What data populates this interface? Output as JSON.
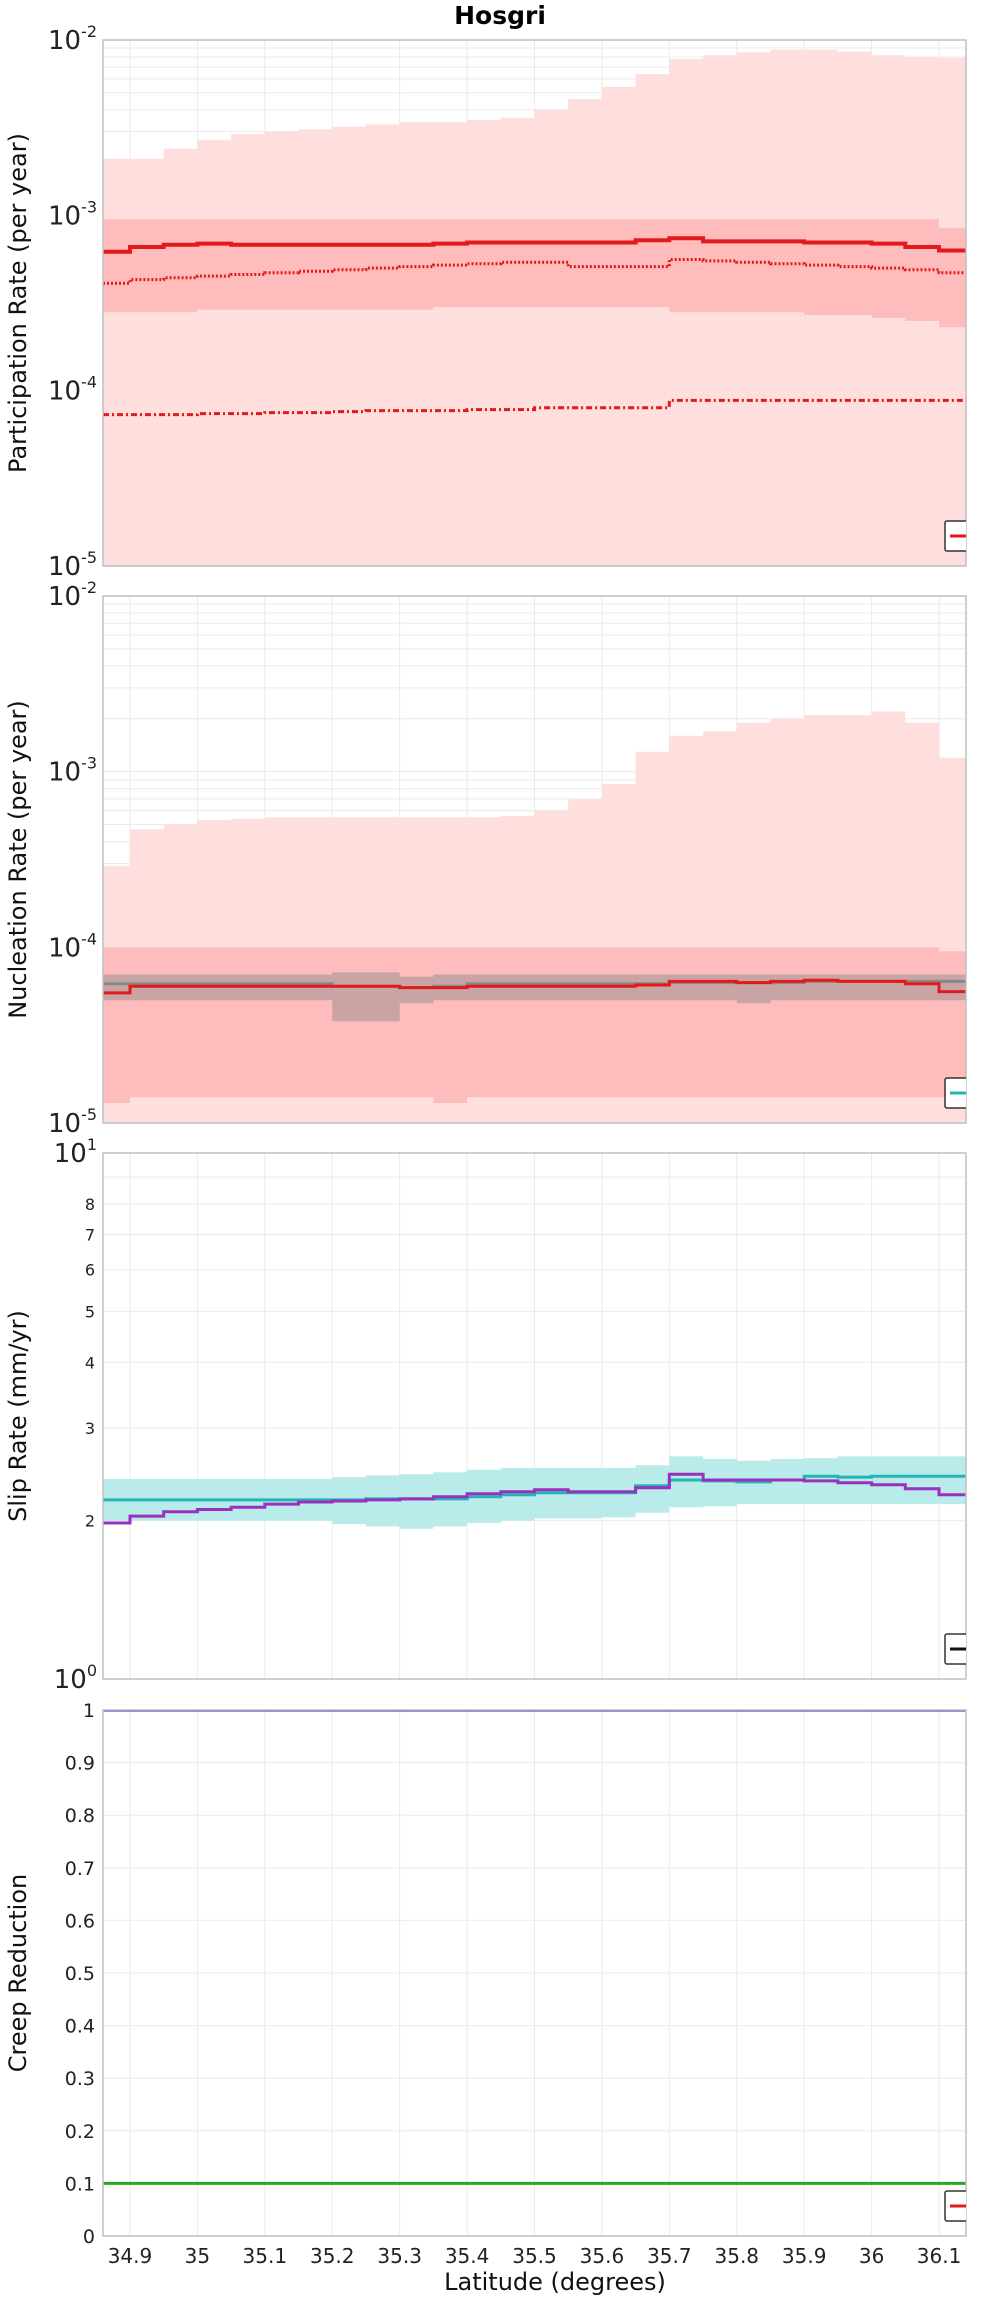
{
  "title": "Hosgri",
  "xlabel": "Latitude (degrees)",
  "x_ticks": [
    "34.9",
    "35",
    "35.1",
    "35.2",
    "35.3",
    "35.4",
    "35.5",
    "35.6",
    "35.7",
    "35.8",
    "35.9",
    "36",
    "36.1"
  ],
  "x_tick_values": [
    34.9,
    35.0,
    35.1,
    35.2,
    35.3,
    35.4,
    35.5,
    35.6,
    35.7,
    35.8,
    35.9,
    36.0,
    36.1
  ],
  "x_range": [
    34.86,
    36.14
  ],
  "x_edges": [
    34.86,
    34.9,
    34.95,
    35.0,
    35.05,
    35.1,
    35.15,
    35.2,
    35.25,
    35.3,
    35.35,
    35.4,
    35.45,
    35.5,
    35.55,
    35.6,
    35.65,
    35.7,
    35.75,
    35.8,
    35.85,
    35.9,
    35.95,
    36.0,
    36.05,
    36.1,
    36.14
  ],
  "colors": {
    "red": "#e31a1c",
    "cyan": "#22b5b5",
    "purple": "#9a2fc0",
    "green": "#22aa22",
    "blue": "#2d2db0",
    "gray": "#888888",
    "light_red": "#ffdede",
    "mid_red": "#ffbcbc",
    "light_cyan": "#b8ebea",
    "grid": "#ebebeb",
    "frame": "#bfbfbf"
  },
  "chart_data": [
    {
      "id": "participation",
      "type": "area",
      "ylabel": "Participation Rate (per year)",
      "yscale": "log",
      "ylim": [
        1e-05,
        0.01
      ],
      "y_ticks": [
        {
          "value": 1e-05,
          "base": "10",
          "exp": "-5"
        },
        {
          "value": 0.0001,
          "base": "10",
          "exp": "-4"
        },
        {
          "value": 0.001,
          "base": "10",
          "exp": "-3"
        },
        {
          "value": 0.01,
          "base": "10",
          "exp": "-2"
        }
      ],
      "bands": [
        {
          "color": "light_red",
          "lower": [
            1e-05,
            1e-05,
            1e-05,
            1e-05,
            1e-05,
            1e-05,
            1e-05,
            1e-05,
            1e-05,
            1e-05,
            1e-05,
            1e-05,
            1e-05,
            1e-05,
            1e-05,
            1e-05,
            1e-05,
            1e-05,
            1e-05,
            1e-05,
            1e-05,
            1e-05,
            1e-05,
            1e-05,
            1e-05,
            1e-05
          ],
          "upper": [
            0.0021,
            0.0021,
            0.0024,
            0.0027,
            0.0029,
            0.003,
            0.0031,
            0.0032,
            0.0033,
            0.0034,
            0.0034,
            0.0035,
            0.0036,
            0.004,
            0.0046,
            0.0054,
            0.0064,
            0.0078,
            0.0082,
            0.0085,
            0.0088,
            0.0088,
            0.0086,
            0.0082,
            0.008,
            0.0079
          ]
        },
        {
          "color": "mid_red",
          "lower": [
            0.00028,
            0.00028,
            0.00028,
            0.00029,
            0.00029,
            0.00029,
            0.00029,
            0.00029,
            0.00029,
            0.00029,
            0.0003,
            0.0003,
            0.0003,
            0.0003,
            0.0003,
            0.0003,
            0.0003,
            0.00028,
            0.00028,
            0.00028,
            0.00028,
            0.00027,
            0.00027,
            0.00026,
            0.00025,
            0.00023
          ],
          "upper": [
            0.00095,
            0.00095,
            0.00095,
            0.00095,
            0.00095,
            0.00095,
            0.00095,
            0.00095,
            0.00095,
            0.00095,
            0.00095,
            0.00095,
            0.00095,
            0.00095,
            0.00095,
            0.00095,
            0.00095,
            0.00095,
            0.00095,
            0.00095,
            0.00095,
            0.00095,
            0.00095,
            0.00095,
            0.00095,
            0.00085
          ]
        }
      ],
      "lines": [
        {
          "color": "red",
          "dash": "none",
          "width": 4,
          "values": [
            0.00062,
            0.00066,
            0.00068,
            0.00069,
            0.00068,
            0.00068,
            0.00068,
            0.00068,
            0.00068,
            0.00068,
            0.00069,
            0.0007,
            0.0007,
            0.0007,
            0.0007,
            0.0007,
            0.00072,
            0.00074,
            0.00071,
            0.00071,
            0.00071,
            0.0007,
            0.0007,
            0.00069,
            0.00066,
            0.00063
          ]
        },
        {
          "color": "red",
          "dash": "2 2",
          "width": 3,
          "values": [
            0.00041,
            0.00043,
            0.00044,
            0.00045,
            0.00046,
            0.00047,
            0.00048,
            0.00049,
            0.0005,
            0.00051,
            0.00052,
            0.00053,
            0.00054,
            0.00054,
            0.00051,
            0.00051,
            0.00051,
            0.00056,
            0.00055,
            0.00054,
            0.00053,
            0.00052,
            0.00051,
            0.0005,
            0.00049,
            0.00047
          ]
        },
        {
          "color": "red",
          "dash": "6 3 2 3",
          "width": 3,
          "values": [
            7.3e-05,
            7.3e-05,
            7.3e-05,
            7.4e-05,
            7.4e-05,
            7.5e-05,
            7.5e-05,
            7.6e-05,
            7.7e-05,
            7.7e-05,
            7.7e-05,
            7.8e-05,
            7.8e-05,
            8e-05,
            8e-05,
            8e-05,
            8e-05,
            8.8e-05,
            8.8e-05,
            8.8e-05,
            8.8e-05,
            8.8e-05,
            8.8e-05,
            8.8e-05,
            8.8e-05,
            8.8e-05
          ]
        }
      ],
      "legend_color": "red"
    },
    {
      "id": "nucleation",
      "type": "area",
      "ylabel": "Nucleation Rate (per year)",
      "yscale": "log",
      "ylim": [
        1e-05,
        0.01
      ],
      "y_ticks": [
        {
          "value": 1e-05,
          "base": "10",
          "exp": "-5"
        },
        {
          "value": 0.0001,
          "base": "10",
          "exp": "-4"
        },
        {
          "value": 0.001,
          "base": "10",
          "exp": "-3"
        },
        {
          "value": 0.01,
          "base": "10",
          "exp": "-2"
        }
      ],
      "bands": [
        {
          "color": "light_red",
          "lower": [
            1e-05,
            1e-05,
            1e-05,
            1e-05,
            1e-05,
            1e-05,
            1e-05,
            1e-05,
            1e-05,
            1e-05,
            1e-05,
            1e-05,
            1e-05,
            1e-05,
            1e-05,
            1e-05,
            1e-05,
            1e-05,
            1e-05,
            1e-05,
            1e-05,
            1e-05,
            1e-05,
            1e-05,
            1e-05,
            1e-05
          ],
          "upper": [
            0.00029,
            0.00047,
            0.0005,
            0.00053,
            0.00054,
            0.00055,
            0.00055,
            0.00055,
            0.00055,
            0.00055,
            0.00055,
            0.00055,
            0.00056,
            0.0006,
            0.0007,
            0.00085,
            0.0013,
            0.0016,
            0.0017,
            0.0019,
            0.002,
            0.0021,
            0.0021,
            0.0022,
            0.0019,
            0.0012
          ]
        },
        {
          "color": "mid_red",
          "lower": [
            1.3e-05,
            1.4e-05,
            1.4e-05,
            1.4e-05,
            1.4e-05,
            1.4e-05,
            1.4e-05,
            1.4e-05,
            1.4e-05,
            1.4e-05,
            1.3e-05,
            1.4e-05,
            1.4e-05,
            1.4e-05,
            1.4e-05,
            1.4e-05,
            1.4e-05,
            1.4e-05,
            1.4e-05,
            1.4e-05,
            1.4e-05,
            1.4e-05,
            1.4e-05,
            1.4e-05,
            1.4e-05,
            1.4e-05
          ],
          "upper": [
            0.0001,
            0.0001,
            0.0001,
            0.0001,
            0.0001,
            0.0001,
            0.0001,
            0.0001,
            0.0001,
            0.0001,
            0.0001,
            0.0001,
            0.0001,
            0.0001,
            0.0001,
            0.0001,
            0.0001,
            0.0001,
            0.0001,
            0.0001,
            0.0001,
            0.0001,
            0.0001,
            0.0001,
            0.0001,
            9.5e-05
          ]
        },
        {
          "color": "gray",
          "opacity": 0.45,
          "lower": [
            5e-05,
            5e-05,
            5e-05,
            5e-05,
            5e-05,
            5e-05,
            5e-05,
            3.8e-05,
            3.8e-05,
            4.8e-05,
            5e-05,
            5e-05,
            5e-05,
            5e-05,
            5e-05,
            5e-05,
            5e-05,
            5e-05,
            5e-05,
            4.8e-05,
            5e-05,
            5e-05,
            5e-05,
            5e-05,
            5e-05,
            5e-05
          ],
          "upper": [
            7e-05,
            7e-05,
            7e-05,
            7e-05,
            7e-05,
            7e-05,
            7e-05,
            7.2e-05,
            7.2e-05,
            6.8e-05,
            7e-05,
            7e-05,
            7e-05,
            7e-05,
            7e-05,
            7e-05,
            7e-05,
            7e-05,
            7e-05,
            7e-05,
            7e-05,
            7e-05,
            7e-05,
            7e-05,
            7e-05,
            7e-05
          ]
        }
      ],
      "lines": [
        {
          "color": "gray",
          "dash": "none",
          "width": 3,
          "values": [
            6.2e-05,
            6.2e-05,
            6.2e-05,
            6.2e-05,
            6.2e-05,
            6.2e-05,
            6.2e-05,
            6e-05,
            6e-05,
            5.9e-05,
            6e-05,
            6.2e-05,
            6.2e-05,
            6.2e-05,
            6.2e-05,
            6.2e-05,
            6.2e-05,
            6.3e-05,
            6.3e-05,
            6.3e-05,
            6.3e-05,
            6.4e-05,
            6.4e-05,
            6.4e-05,
            6.4e-05,
            6.4e-05
          ]
        },
        {
          "color": "red",
          "dash": "none",
          "width": 3,
          "values": [
            5.5e-05,
            6e-05,
            6e-05,
            6e-05,
            6e-05,
            6e-05,
            6e-05,
            6e-05,
            6e-05,
            5.9e-05,
            5.9e-05,
            6e-05,
            6e-05,
            6e-05,
            6e-05,
            6e-05,
            6.1e-05,
            6.4e-05,
            6.4e-05,
            6.3e-05,
            6.4e-05,
            6.5e-05,
            6.4e-05,
            6.4e-05,
            6.2e-05,
            5.6e-05
          ]
        }
      ],
      "legend_color": "cyan"
    },
    {
      "id": "slip",
      "type": "area",
      "ylabel": "Slip Rate (mm/yr)",
      "yscale": "log",
      "ylim": [
        1,
        10
      ],
      "y_ticks": [
        {
          "value": 1,
          "base": "10",
          "exp": "0"
        },
        {
          "value": 10,
          "base": "10",
          "exp": "1"
        }
      ],
      "y_minor_ticks": [
        {
          "value": 2,
          "label": "2"
        },
        {
          "value": 3,
          "label": "3"
        },
        {
          "value": 4,
          "label": "4"
        },
        {
          "value": 5,
          "label": "5"
        },
        {
          "value": 6,
          "label": "6"
        },
        {
          "value": 7,
          "label": "7"
        },
        {
          "value": 8,
          "label": "8"
        }
      ],
      "bands": [
        {
          "color": "light_cyan",
          "lower": [
            2.0,
            2.0,
            2.0,
            2.0,
            2.0,
            2.0,
            2.0,
            1.97,
            1.95,
            1.93,
            1.95,
            1.98,
            2.0,
            2.02,
            2.02,
            2.03,
            2.07,
            2.12,
            2.13,
            2.15,
            2.15,
            2.15,
            2.15,
            2.15,
            2.15,
            2.15
          ],
          "upper": [
            2.4,
            2.4,
            2.4,
            2.4,
            2.4,
            2.4,
            2.4,
            2.42,
            2.44,
            2.45,
            2.47,
            2.5,
            2.52,
            2.52,
            2.52,
            2.52,
            2.55,
            2.65,
            2.62,
            2.6,
            2.62,
            2.63,
            2.65,
            2.65,
            2.65,
            2.65
          ]
        }
      ],
      "lines": [
        {
          "color": "cyan",
          "dash": "none",
          "width": 3,
          "values": [
            2.19,
            2.19,
            2.19,
            2.19,
            2.19,
            2.19,
            2.19,
            2.19,
            2.2,
            2.2,
            2.2,
            2.22,
            2.24,
            2.26,
            2.26,
            2.26,
            2.33,
            2.39,
            2.38,
            2.37,
            2.39,
            2.43,
            2.42,
            2.43,
            2.43,
            2.43
          ]
        },
        {
          "color": "purple",
          "dash": "none",
          "width": 3,
          "values": [
            1.98,
            2.04,
            2.08,
            2.1,
            2.12,
            2.15,
            2.17,
            2.18,
            2.19,
            2.2,
            2.22,
            2.25,
            2.27,
            2.29,
            2.27,
            2.27,
            2.31,
            2.45,
            2.39,
            2.39,
            2.39,
            2.38,
            2.36,
            2.34,
            2.3,
            2.24
          ]
        }
      ],
      "legend_color": "#111111"
    },
    {
      "id": "creep",
      "type": "line",
      "ylabel": "Creep Reduction",
      "yscale": "linear",
      "ylim": [
        0,
        1
      ],
      "y_ticks": [
        {
          "value": 0,
          "label": "0"
        },
        {
          "value": 0.1,
          "label": "0.1"
        },
        {
          "value": 0.2,
          "label": "0.2"
        },
        {
          "value": 0.3,
          "label": "0.3"
        },
        {
          "value": 0.4,
          "label": "0.4"
        },
        {
          "value": 0.5,
          "label": "0.5"
        },
        {
          "value": 0.6,
          "label": "0.6"
        },
        {
          "value": 0.7,
          "label": "0.7"
        },
        {
          "value": 0.8,
          "label": "0.8"
        },
        {
          "value": 0.9,
          "label": "0.9"
        },
        {
          "value": 1,
          "label": "1"
        }
      ],
      "bands": [],
      "lines": [
        {
          "color": "blue",
          "dash": "none",
          "width": 3,
          "values": [
            1,
            1,
            1,
            1,
            1,
            1,
            1,
            1,
            1,
            1,
            1,
            1,
            1,
            1,
            1,
            1,
            1,
            1,
            1,
            1,
            1,
            1,
            1,
            1,
            1,
            1
          ]
        },
        {
          "color": "green",
          "dash": "none",
          "width": 3,
          "values": [
            0.1,
            0.1,
            0.1,
            0.1,
            0.1,
            0.1,
            0.1,
            0.1,
            0.1,
            0.1,
            0.1,
            0.1,
            0.1,
            0.1,
            0.1,
            0.1,
            0.1,
            0.1,
            0.1,
            0.1,
            0.1,
            0.1,
            0.1,
            0.1,
            0.1,
            0.1
          ]
        }
      ],
      "legend_color": "red"
    }
  ]
}
